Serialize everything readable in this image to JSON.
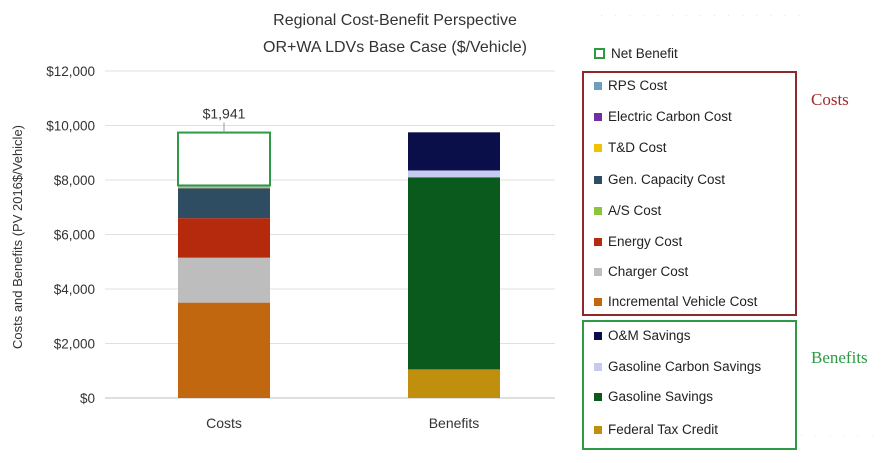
{
  "chart_data": {
    "type": "bar",
    "stacked": true,
    "title": "Regional Cost-Benefit Perspective",
    "subtitle": "OR+WA LDVs Base Case ($/Vehicle)",
    "ylabel": "Costs and Benefits (PV 2016$/Vehicle)",
    "ylim": [
      0,
      12000
    ],
    "yticks": [
      "$0",
      "$2,000",
      "$4,000",
      "$6,000",
      "$8,000",
      "$10,000",
      "$12,000"
    ],
    "grid": true,
    "categories": [
      "Costs",
      "Benefits"
    ],
    "series": [
      {
        "name": "Incremental Vehicle Cost",
        "color": "#c0670f",
        "values": [
          3500,
          0
        ]
      },
      {
        "name": "Charger Cost",
        "color": "#bdbdbd",
        "values": [
          1650,
          0
        ]
      },
      {
        "name": "Energy Cost",
        "color": "#b52a0c",
        "values": [
          1450,
          0
        ]
      },
      {
        "name": "A/S Cost",
        "color": "#8cc43c",
        "values": [
          0,
          0
        ]
      },
      {
        "name": "Gen. Capacity Cost",
        "color": "#2e4d63",
        "values": [
          1100,
          0
        ]
      },
      {
        "name": "T&D Cost",
        "color": "#f2c200",
        "values": [
          50,
          0
        ]
      },
      {
        "name": "Electric Carbon Cost",
        "color": "#7030a0",
        "values": [
          0,
          0
        ]
      },
      {
        "name": "RPS Cost",
        "color": "#6f9fc0",
        "values": [
          50,
          0
        ]
      },
      {
        "name": "Net Benefit",
        "color": "#ffffff",
        "border": "#2e9a45",
        "values": [
          1941,
          0
        ]
      },
      {
        "name": "Federal Tax Credit",
        "color": "#bf8f0d",
        "values": [
          0,
          1050
        ]
      },
      {
        "name": "Gasoline Savings",
        "color": "#0a5a1e",
        "values": [
          0,
          7050
        ]
      },
      {
        "name": "Gasoline Carbon Savings",
        "color": "#c6c9f0",
        "values": [
          0,
          250
        ]
      },
      {
        "name": "O&M Savings",
        "color": "#0a0f4a",
        "values": [
          0,
          1400
        ]
      }
    ],
    "annotations": [
      "$1,941"
    ],
    "legend": {
      "items": [
        "Net Benefit",
        "RPS Cost",
        "Electric Carbon Cost",
        "T&D Cost",
        "Gen. Capacity Cost",
        "A/S Cost",
        "Energy Cost",
        "Charger Cost",
        "Incremental Vehicle Cost",
        "O&M Savings",
        "Gasoline Carbon Savings",
        "Gasoline Savings",
        "Federal Tax Credit"
      ],
      "placement": "right",
      "groups": [
        {
          "label": "Costs",
          "color": "#a12b2b"
        },
        {
          "label": "Benefits",
          "color": "#2e9a45"
        }
      ]
    }
  }
}
